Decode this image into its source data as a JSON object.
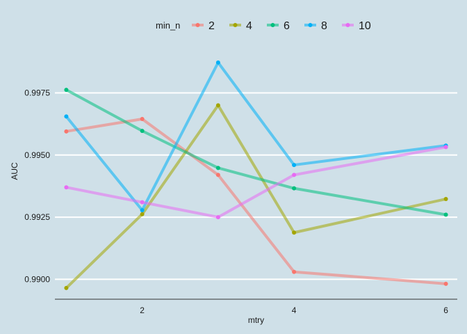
{
  "chart_data": {
    "type": "line",
    "xlabel": "mtry",
    "ylabel": "AUC",
    "x": [
      1,
      2,
      3,
      4,
      5,
      6
    ],
    "xlim": [
      0.85,
      6.15
    ],
    "ylim": [
      0.9892,
      0.9995
    ],
    "x_ticks": [
      2,
      4,
      6
    ],
    "x_tick_labels": [
      "2",
      "4",
      "6"
    ],
    "y_ticks": [
      0.99,
      0.9925,
      0.995,
      0.9975
    ],
    "y_tick_labels": [
      "0.9900",
      "0.9925",
      "0.9950",
      "0.9975"
    ],
    "grid": "horizontal major",
    "legend": {
      "title": "min_n",
      "position": "top"
    },
    "series": [
      {
        "name": "2",
        "color": "#F8766D",
        "values": [
          0.99595,
          0.99645,
          0.9942,
          0.9903,
          null,
          0.98982
        ]
      },
      {
        "name": "4",
        "color": "#A3A500",
        "values": [
          0.98965,
          0.99262,
          0.997,
          0.99188,
          null,
          0.99323
        ]
      },
      {
        "name": "6",
        "color": "#00BF7D",
        "values": [
          0.99762,
          0.99597,
          0.99448,
          0.99366,
          null,
          0.9926
        ]
      },
      {
        "name": "8",
        "color": "#00B0F6",
        "values": [
          0.99655,
          0.99278,
          0.99872,
          0.9946,
          null,
          0.99538
        ]
      },
      {
        "name": "10",
        "color": "#E76BF3",
        "values": [
          0.9937,
          0.9931,
          0.9925,
          0.9942,
          null,
          0.99532
        ]
      }
    ]
  }
}
